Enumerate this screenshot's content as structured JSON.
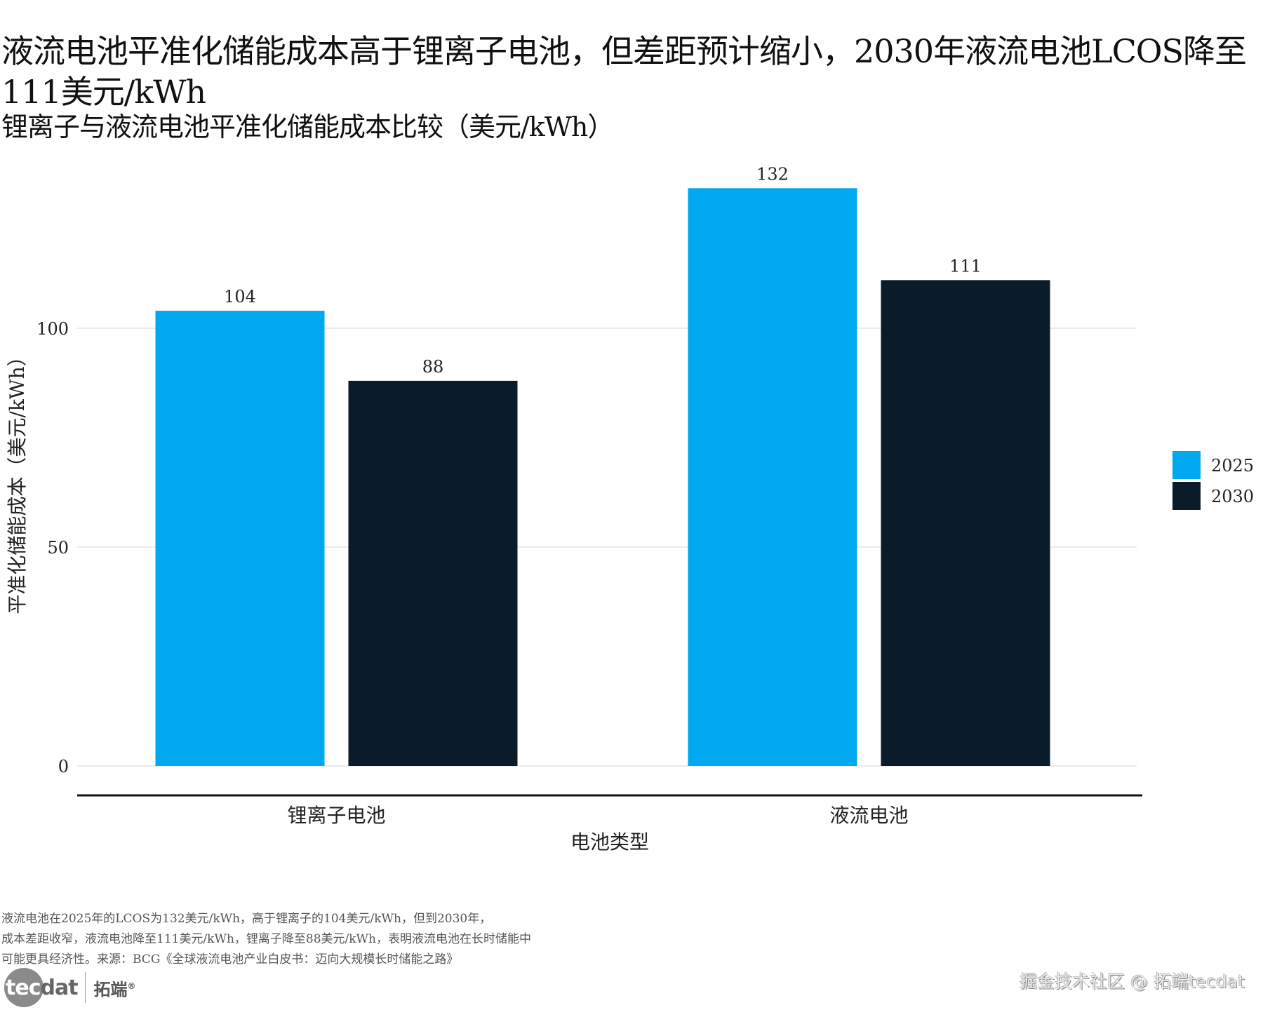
{
  "title": "液流电池平准化储能成本高于锂离子电池，但差距预计缩小，2030年液流电池LCOS降至111美元/kWh",
  "subtitle": "锂离子与液流电池平准化储能成本比较（美元/kWh）",
  "caption": {
    "lines": [
      "液流电池在2025年的LCOS为132美元/kWh，高于锂离子的104美元/kWh，但到2030年，",
      "成本差距收窄，液流电池降至111美元/kWh，锂离子降至88美元/kWh，表明液流电池在长时储能中",
      "可能更具经济性。来源：BCG《全球液流电池产业白皮书：迈向大规模长时储能之路》"
    ]
  },
  "logo": {
    "part1": "tec",
    "part2": "dat",
    "cn": "拓端",
    "reg": "®"
  },
  "watermark": "掘金技术社区 @ 拓端tecdat",
  "colors": {
    "2025": "#00A8F0",
    "2030": "#0A1C2A",
    "grid": "#EBEBEB",
    "axis": "#111111"
  },
  "chart_data": {
    "type": "bar",
    "title": "液流电池平准化储能成本高于锂离子电池，但差距预计缩小，2030年液流电池LCOS降至111美元/kWh",
    "subtitle": "锂离子与液流电池平准化储能成本比较（美元/kWh）",
    "xlabel": "电池类型",
    "ylabel": "平准化储能成本（美元/kWh）",
    "categories": [
      "锂离子电池",
      "液流电池"
    ],
    "series": [
      {
        "name": "2025",
        "values": [
          104,
          132
        ]
      },
      {
        "name": "2030",
        "values": [
          88,
          111
        ]
      }
    ],
    "data_labels": true,
    "yticks": [
      0,
      50,
      100
    ],
    "ylim": [
      -6,
      140
    ],
    "grid": true,
    "legend": "right"
  }
}
